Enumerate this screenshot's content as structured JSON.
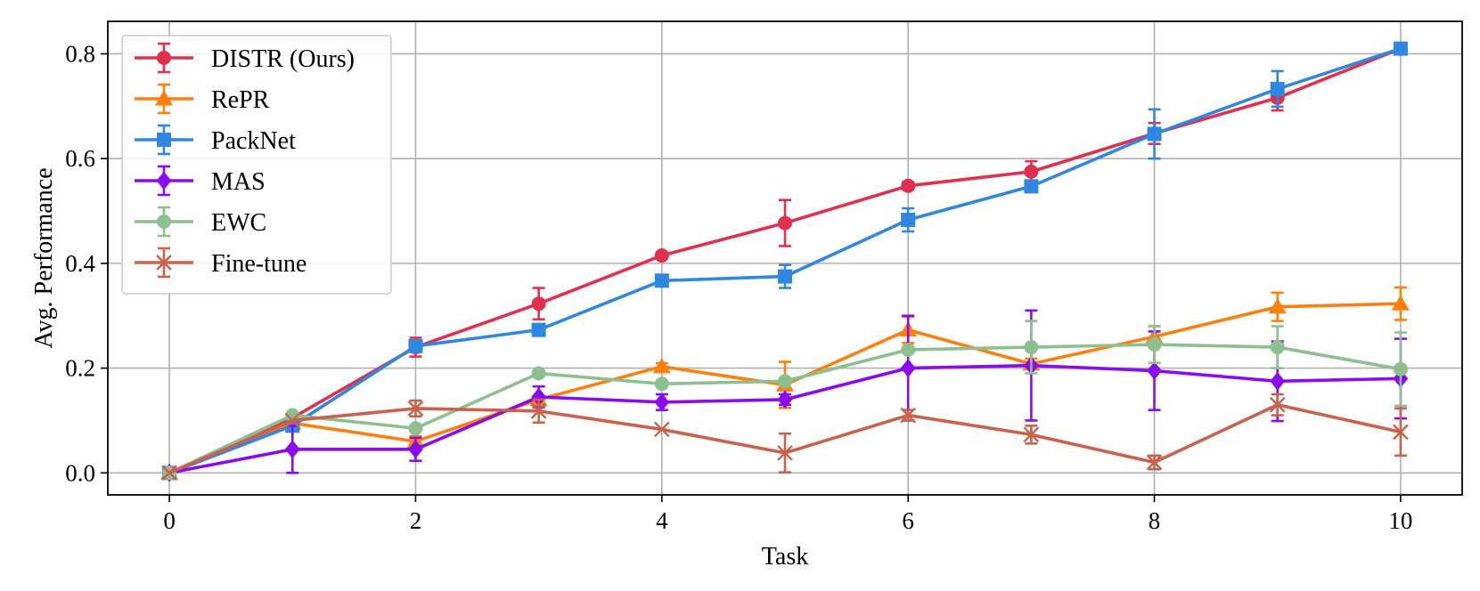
{
  "chart_data": {
    "type": "line",
    "title": "",
    "xlabel": "Task",
    "ylabel": "Avg. Performance",
    "xlim": [
      -0.5,
      10.5
    ],
    "ylim": [
      -0.042,
      0.862
    ],
    "xticks": [
      0,
      2,
      4,
      6,
      8,
      10
    ],
    "yticks": [
      0.0,
      0.2,
      0.4,
      0.6,
      0.8
    ],
    "xtick_labels": [
      "0",
      "2",
      "4",
      "6",
      "8",
      "10"
    ],
    "ytick_labels": [
      "0.0",
      "0.2",
      "0.4",
      "0.6",
      "0.8"
    ],
    "grid": true,
    "legend_position": "top-left",
    "x": [
      0,
      1,
      2,
      3,
      4,
      5,
      6,
      7,
      8,
      9,
      10
    ],
    "series": [
      {
        "name": "DISTR (Ours)",
        "color": "#e0304e",
        "marker": "circle",
        "values": [
          0.0,
          0.105,
          0.24,
          0.323,
          0.415,
          0.477,
          0.548,
          0.575,
          0.648,
          0.716,
          0.81
        ],
        "errors": [
          0.0,
          0.0,
          0.018,
          0.03,
          0.005,
          0.044,
          0.007,
          0.02,
          0.02,
          0.024,
          0.005
        ]
      },
      {
        "name": "RePR",
        "color": "#ff7f0e",
        "marker": "triangle",
        "values": [
          0.0,
          0.095,
          0.06,
          0.14,
          0.203,
          0.168,
          0.273,
          0.208,
          0.26,
          0.317,
          0.323
        ],
        "errors": [
          0.0,
          0.0,
          0.01,
          0.0,
          0.006,
          0.044,
          0.025,
          0.01,
          0.02,
          0.027,
          0.031
        ]
      },
      {
        "name": "PackNet",
        "color": "#2f87e0",
        "marker": "square",
        "values": [
          0.0,
          0.09,
          0.242,
          0.273,
          0.367,
          0.375,
          0.483,
          0.547,
          0.647,
          0.733,
          0.81
        ],
        "errors": [
          0.0,
          0.0,
          0.01,
          0.0,
          0.0,
          0.022,
          0.022,
          0.0,
          0.047,
          0.034,
          0.0
        ]
      },
      {
        "name": "MAS",
        "color": "#8a0bf2",
        "marker": "diamond",
        "values": [
          0.0,
          0.045,
          0.045,
          0.145,
          0.135,
          0.14,
          0.2,
          0.205,
          0.195,
          0.175,
          0.18
        ],
        "errors": [
          0.0,
          0.045,
          0.022,
          0.02,
          0.015,
          0.01,
          0.1,
          0.105,
          0.075,
          0.076,
          0.076
        ]
      },
      {
        "name": "EWC",
        "color": "#8dbf8f",
        "marker": "circle",
        "values": [
          0.0,
          0.11,
          0.085,
          0.19,
          0.17,
          0.175,
          0.235,
          0.24,
          0.245,
          0.24,
          0.198
        ],
        "errors": [
          0.0,
          0.0,
          0.0,
          0.0,
          0.0,
          0.0,
          0.0,
          0.05,
          0.035,
          0.04,
          0.07
        ]
      },
      {
        "name": "Fine-tune",
        "color": "#c9624c",
        "marker": "x",
        "values": [
          0.0,
          0.1,
          0.123,
          0.118,
          0.083,
          0.038,
          0.11,
          0.073,
          0.02,
          0.13,
          0.078
        ],
        "errors": [
          0.0,
          0.0,
          0.015,
          0.022,
          0.0,
          0.037,
          0.01,
          0.017,
          0.013,
          0.02,
          0.045
        ]
      }
    ]
  }
}
